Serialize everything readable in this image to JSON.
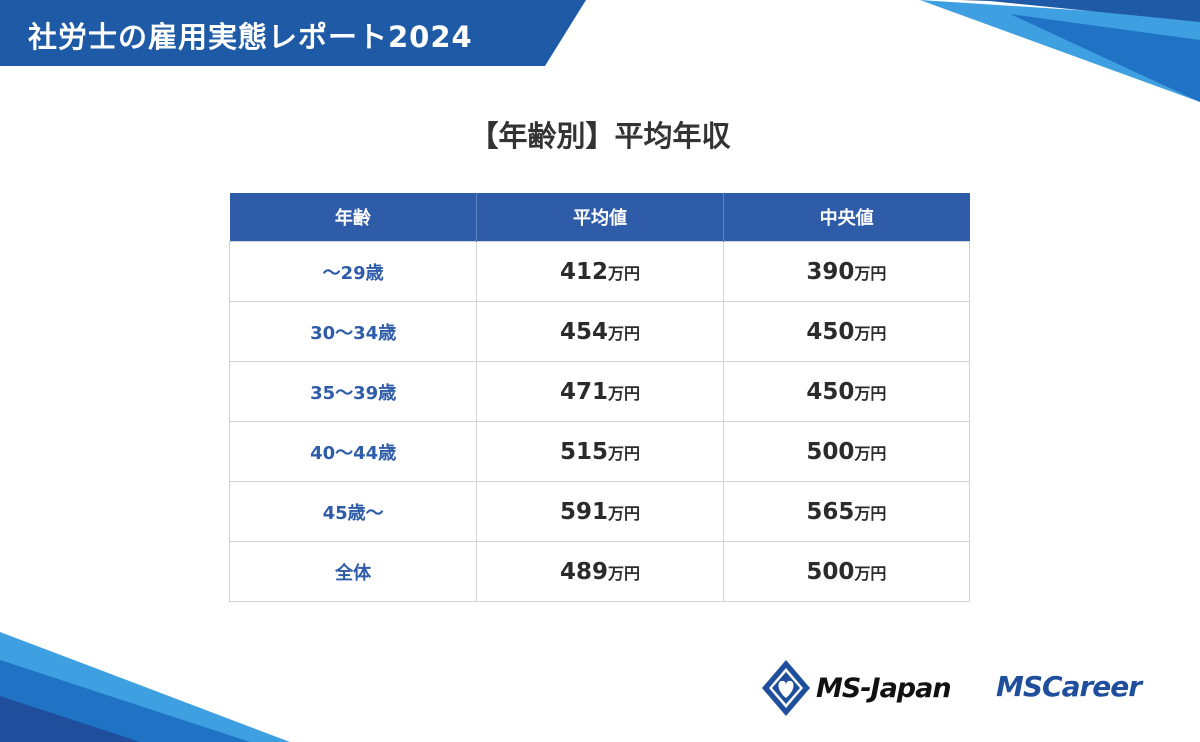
{
  "header": {
    "title": "社労士の雇用実態レポート2024"
  },
  "chart_title": "【年齢別】平均年収",
  "table": {
    "headers": [
      "年齢",
      "平均値",
      "中央値"
    ],
    "rows": [
      {
        "age": "～29歳",
        "average": "412",
        "median": "390"
      },
      {
        "age": "30～34歳",
        "average": "454",
        "median": "450"
      },
      {
        "age": "35～39歳",
        "average": "471",
        "median": "450"
      },
      {
        "age": "40～44歳",
        "average": "515",
        "median": "500"
      },
      {
        "age": "45歳～",
        "average": "591",
        "median": "565"
      },
      {
        "age": "全体",
        "average": "489",
        "median": "500"
      }
    ],
    "unit": "万円"
  },
  "logos": {
    "ms_japan": "MS-Japan",
    "ms_career": "MSCareer",
    "ms_japan_icon": "diamond-heart-icon"
  },
  "colors": {
    "brand_blue": "#1f5aa6",
    "header_cell": "#2e5ca8",
    "age_text": "#2e5ca8",
    "stripe_light": "#3ea0e0"
  }
}
